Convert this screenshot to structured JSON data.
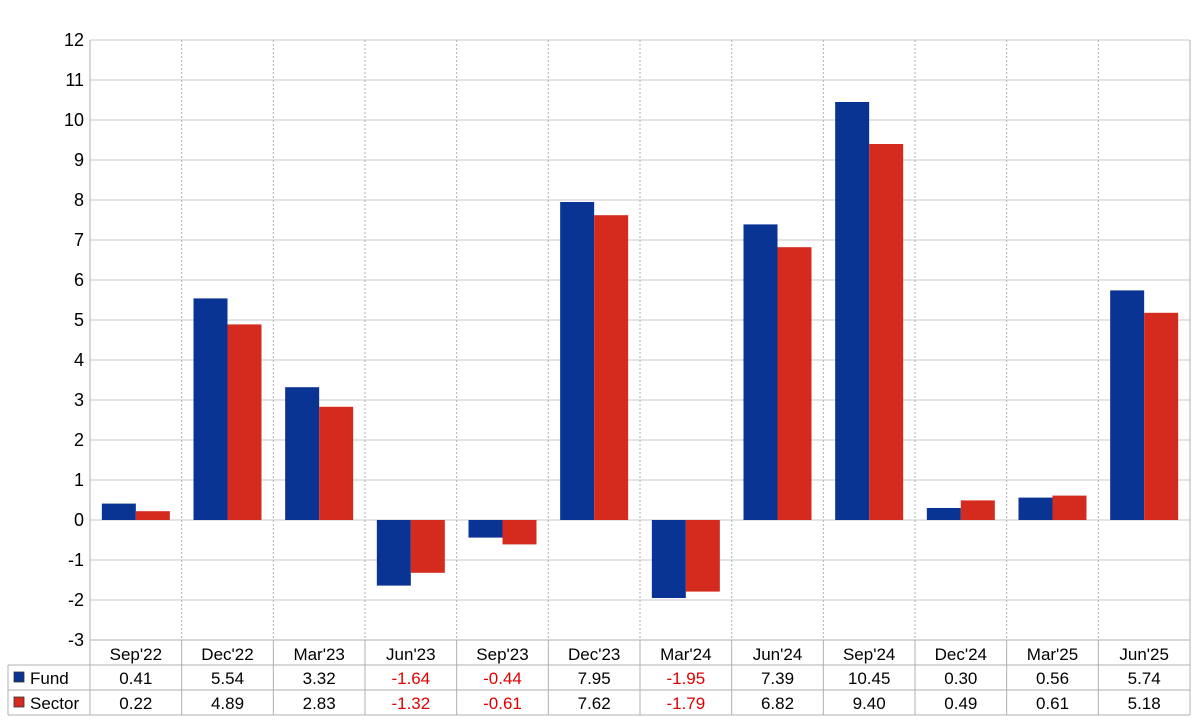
{
  "chart_data": {
    "type": "bar",
    "categories": [
      "Sep'22",
      "Dec'22",
      "Mar'23",
      "Jun'23",
      "Sep'23",
      "Dec'23",
      "Mar'24",
      "Jun'24",
      "Sep'24",
      "Dec'24",
      "Mar'25",
      "Jun'25"
    ],
    "series": [
      {
        "name": "Fund",
        "color": "#0a3494",
        "values": [
          0.41,
          5.54,
          3.32,
          -1.64,
          -0.44,
          7.95,
          -1.95,
          7.39,
          10.45,
          0.3,
          0.56,
          5.74
        ],
        "labels": [
          "0.41",
          "5.54",
          "3.32",
          "-1.64",
          "-0.44",
          "7.95",
          "-1.95",
          "7.39",
          "10.45",
          "0.30",
          "0.56",
          "5.74"
        ]
      },
      {
        "name": "Sector",
        "color": "#d52b1e",
        "values": [
          0.22,
          4.89,
          2.83,
          -1.32,
          -0.61,
          7.62,
          -1.79,
          6.82,
          9.4,
          0.49,
          0.61,
          5.18
        ],
        "labels": [
          "0.22",
          "4.89",
          "2.83",
          "-1.32",
          "-0.61",
          "7.62",
          "-1.79",
          "6.82",
          "9.40",
          "0.49",
          "0.61",
          "5.18"
        ]
      }
    ],
    "ylim": [
      -3,
      12
    ],
    "yticks": [
      "-3",
      "-2",
      "-1",
      "0",
      "1",
      "2",
      "3",
      "4",
      "5",
      "6",
      "7",
      "8",
      "9",
      "10",
      "11",
      "12"
    ],
    "grid": true,
    "legend": "data table below chart",
    "negative_value_color": "#e00000",
    "title": "",
    "xlabel": "",
    "ylabel": ""
  }
}
